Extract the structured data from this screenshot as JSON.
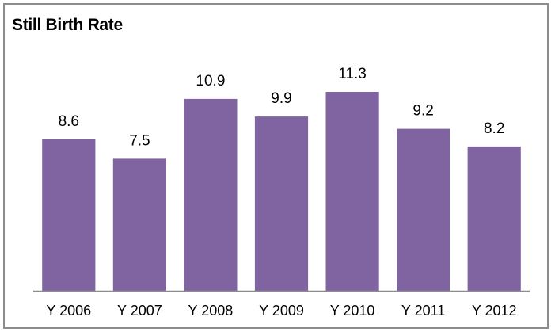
{
  "chart_data": {
    "type": "bar",
    "title": "Still Birth Rate",
    "xlabel": "",
    "ylabel": "",
    "categories": [
      "Y 2006",
      "Y 2007",
      "Y 2008",
      "Y 2009",
      "Y 2010",
      "Y 2011",
      "Y 2012"
    ],
    "values": [
      8.6,
      7.5,
      10.9,
      9.9,
      11.3,
      9.2,
      8.2
    ],
    "data_labels": [
      "8.6",
      "7.5",
      "10.9",
      "9.9",
      "11.3",
      "9.2",
      "8.2"
    ],
    "ylim": [
      0,
      11.3
    ],
    "grid": false,
    "legend": "none",
    "colors": {
      "bar": "#8064a2",
      "axis": "#8c8c8c",
      "border": "#8c8c8c",
      "text": "#000000"
    }
  }
}
